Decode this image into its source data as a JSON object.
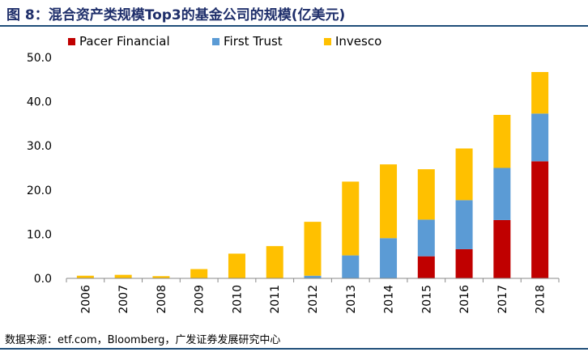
{
  "figure": {
    "title": "图 8：混合资产类规模Top3的基金公司的规模(亿美元)",
    "source": "数据来源：etf.com，Bloomberg，广发证券发展研究中心"
  },
  "chart_data": {
    "type": "bar",
    "stacked": true,
    "categories": [
      "2006",
      "2007",
      "2008",
      "2009",
      "2010",
      "2011",
      "2012",
      "2013",
      "2014",
      "2015",
      "2016",
      "2017",
      "2018"
    ],
    "series": [
      {
        "name": "Pacer Financial",
        "color": "#c00000",
        "values": [
          0,
          0,
          0,
          0,
          0,
          0,
          0,
          0,
          0,
          5.0,
          6.6,
          13.2,
          26.5
        ]
      },
      {
        "name": "First Trust",
        "color": "#5b9bd5",
        "values": [
          0,
          0,
          0,
          0,
          0,
          0,
          0.6,
          5.2,
          9.1,
          8.3,
          11.1,
          11.8,
          10.8
        ]
      },
      {
        "name": "Invesco",
        "color": "#ffc000",
        "values": [
          0.6,
          0.8,
          0.5,
          2.1,
          5.6,
          7.3,
          12.2,
          16.7,
          16.7,
          11.4,
          11.7,
          12.0,
          9.4
        ]
      }
    ],
    "ylim": [
      0,
      50
    ],
    "yticks": [
      "0.0",
      "10.0",
      "20.0",
      "30.0",
      "40.0",
      "50.0"
    ],
    "legend_position": "top",
    "grid": false
  }
}
